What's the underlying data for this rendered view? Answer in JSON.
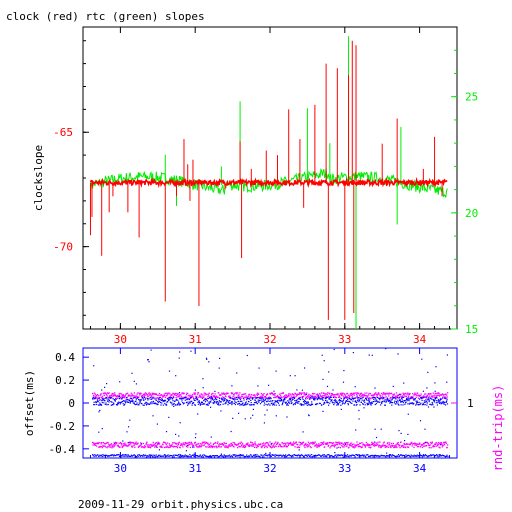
{
  "title": "clock (red) rtc (green) slopes",
  "footer": "2009-11-29 orbit.physics.ubc.ca",
  "colors": {
    "clock": "#ff0000",
    "rtc": "#00ee00",
    "offset": "#0000ff",
    "rndtrip": "#ff00ff",
    "frame": "#000000"
  },
  "chart_data": [
    {
      "type": "line",
      "title": "clock (red) rtc (green) slopes",
      "ylabel": "clockslope",
      "y2label": "",
      "xlim": [
        29.5,
        34.5
      ],
      "ylim": [
        -73.6,
        -60.4
      ],
      "y2lim": [
        15.0,
        28.0
      ],
      "xticks": [
        "30",
        "31",
        "32",
        "33",
        "34"
      ],
      "yticks": [
        "-65",
        "-70"
      ],
      "y2ticks": [
        "15",
        "20",
        "25"
      ],
      "grid": false,
      "series": [
        {
          "color": "#ff0000",
          "axis": "left",
          "baseline": -67.2,
          "spikes": [
            [
              29.6,
              -69.5
            ],
            [
              29.62,
              -68.7
            ],
            [
              29.75,
              -70.4
            ],
            [
              29.85,
              -68.5
            ],
            [
              29.9,
              -67.8
            ],
            [
              30.1,
              -68.5
            ],
            [
              30.25,
              -69.6
            ],
            [
              30.6,
              -72.4
            ],
            [
              30.75,
              -67.8
            ],
            [
              30.85,
              -65.3
            ],
            [
              30.9,
              -66.4
            ],
            [
              30.93,
              -68.0
            ],
            [
              30.97,
              -66.2
            ],
            [
              31.05,
              -72.6
            ],
            [
              31.4,
              -67.5
            ],
            [
              31.6,
              -65.4
            ],
            [
              31.62,
              -70.5
            ],
            [
              31.75,
              -66.6
            ],
            [
              31.95,
              -65.8
            ],
            [
              32.1,
              -66.0
            ],
            [
              32.25,
              -64.0
            ],
            [
              32.4,
              -65.3
            ],
            [
              32.45,
              -68.3
            ],
            [
              32.6,
              -63.8
            ],
            [
              32.75,
              -62.0
            ],
            [
              32.78,
              -73.2
            ],
            [
              32.9,
              -62.2
            ],
            [
              33.0,
              -73.2
            ],
            [
              33.05,
              -62.5
            ],
            [
              33.1,
              -61.0
            ],
            [
              33.12,
              -72.9
            ],
            [
              33.15,
              -61.2
            ],
            [
              33.5,
              -65.5
            ],
            [
              33.7,
              -64.4
            ],
            [
              34.05,
              -66.6
            ],
            [
              34.2,
              -65.2
            ],
            [
              34.3,
              -67.8
            ]
          ]
        },
        {
          "color": "#00ee00",
          "axis": "right",
          "baseline": 21.2,
          "spikes": [
            [
              30.6,
              22.5
            ],
            [
              30.75,
              20.3
            ],
            [
              31.35,
              22.0
            ],
            [
              31.6,
              24.8
            ],
            [
              32.5,
              24.5
            ],
            [
              32.8,
              23.0
            ],
            [
              33.05,
              27.6
            ],
            [
              33.15,
              15.0
            ],
            [
              33.7,
              19.5
            ],
            [
              33.75,
              23.7
            ]
          ]
        }
      ]
    },
    {
      "type": "scatter",
      "ylabel": "offset(ms)",
      "y2label": "rnd-trip(ms)",
      "xlim": [
        29.5,
        34.5
      ],
      "ylim": [
        -0.48,
        0.48
      ],
      "xticks": [
        "30",
        "31",
        "32",
        "33",
        "34"
      ],
      "yticks": [
        "0.4",
        "0.2",
        "0",
        "-0.2",
        "-0.4"
      ],
      "y2ticks": [
        "1"
      ],
      "grid": false,
      "series": [
        {
          "name": "offset",
          "color": "#0000ff",
          "level": 0.02,
          "spread": 0.035
        },
        {
          "name": "rnd-trip",
          "color": "#ff00ff",
          "bands": [
            0.07,
            -0.36
          ],
          "spread": 0.025
        }
      ]
    }
  ]
}
